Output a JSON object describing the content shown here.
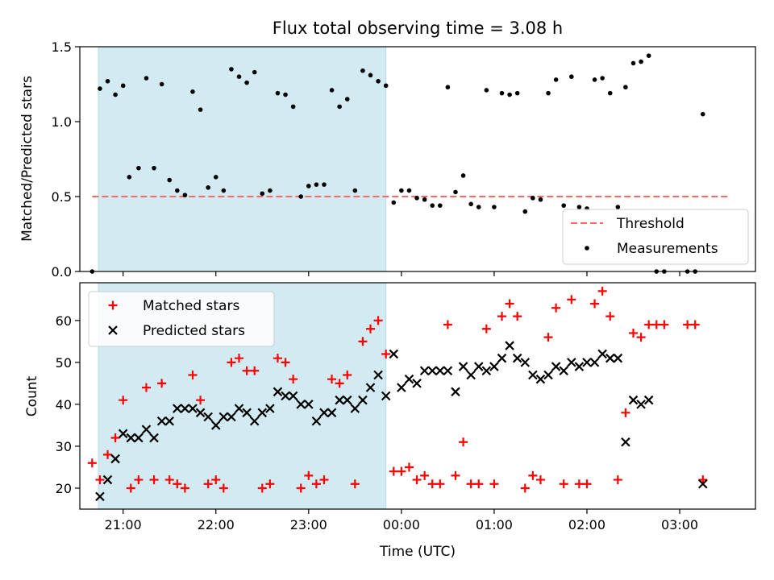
{
  "chart_data": [
    {
      "type": "scatter",
      "title": "Flux total observing time = 3.08 h",
      "xlabel": "",
      "ylabel": "Matched/Predicted stars",
      "xlim": [
        "20:32",
        "03:49"
      ],
      "ylim": [
        0,
        1.5
      ],
      "yticks": [
        "0.0",
        "0.5",
        "1.0",
        "1.5"
      ],
      "xticks": [
        "21:00",
        "22:00",
        "23:00",
        "00:00",
        "01:00",
        "02:00",
        "03:00"
      ],
      "x_tick_labels_shown": false,
      "shaded_interval": {
        "from": "20:44",
        "to": "23:50",
        "color": "#add8e6"
      },
      "threshold": {
        "name": "Threshold",
        "value": 0.5,
        "x_from": "20:40",
        "x_to": "03:33",
        "color": "#ff6666",
        "style": "dashed"
      },
      "legend": {
        "placement": "lower right",
        "entries": [
          "Threshold",
          "Measurements"
        ]
      },
      "series": [
        {
          "name": "Measurements",
          "marker": "dot",
          "color": "#000000",
          "points": [
            [
              "20:40",
              0.0
            ],
            [
              "20:45",
              1.22
            ],
            [
              "20:50",
              1.27
            ],
            [
              "20:55",
              1.18
            ],
            [
              "21:00",
              1.24
            ],
            [
              "21:04",
              0.63
            ],
            [
              "21:10",
              0.69
            ],
            [
              "21:15",
              1.29
            ],
            [
              "21:20",
              0.69
            ],
            [
              "21:25",
              1.25
            ],
            [
              "21:30",
              0.61
            ],
            [
              "21:35",
              0.54
            ],
            [
              "21:40",
              0.51
            ],
            [
              "21:45",
              1.2
            ],
            [
              "21:50",
              1.08
            ],
            [
              "21:55",
              0.56
            ],
            [
              "22:00",
              0.63
            ],
            [
              "22:05",
              0.54
            ],
            [
              "22:10",
              1.35
            ],
            [
              "22:15",
              1.3
            ],
            [
              "22:20",
              1.26
            ],
            [
              "22:25",
              1.33
            ],
            [
              "22:30",
              0.52
            ],
            [
              "22:35",
              0.54
            ],
            [
              "22:40",
              1.19
            ],
            [
              "22:45",
              1.18
            ],
            [
              "22:50",
              1.1
            ],
            [
              "22:55",
              0.5
            ],
            [
              "23:00",
              0.57
            ],
            [
              "23:05",
              0.58
            ],
            [
              "23:10",
              0.58
            ],
            [
              "23:15",
              1.21
            ],
            [
              "23:20",
              1.1
            ],
            [
              "23:25",
              1.15
            ],
            [
              "23:30",
              0.54
            ],
            [
              "23:35",
              1.34
            ],
            [
              "23:40",
              1.31
            ],
            [
              "23:45",
              1.27
            ],
            [
              "23:50",
              1.24
            ],
            [
              "23:55",
              0.46
            ],
            [
              "00:00",
              0.54
            ],
            [
              "00:05",
              0.54
            ],
            [
              "00:10",
              0.49
            ],
            [
              "00:15",
              0.48
            ],
            [
              "00:20",
              0.44
            ],
            [
              "00:25",
              0.44
            ],
            [
              "00:30",
              1.23
            ],
            [
              "00:35",
              0.53
            ],
            [
              "00:40",
              0.64
            ],
            [
              "00:45",
              0.45
            ],
            [
              "00:50",
              0.43
            ],
            [
              "00:55",
              1.21
            ],
            [
              "01:00",
              0.43
            ],
            [
              "01:05",
              1.19
            ],
            [
              "01:10",
              1.18
            ],
            [
              "01:15",
              1.19
            ],
            [
              "01:20",
              0.4
            ],
            [
              "01:25",
              0.49
            ],
            [
              "01:30",
              0.48
            ],
            [
              "01:35",
              1.19
            ],
            [
              "01:40",
              1.28
            ],
            [
              "01:45",
              0.44
            ],
            [
              "01:50",
              1.3
            ],
            [
              "01:55",
              0.43
            ],
            [
              "02:00",
              0.42
            ],
            [
              "02:05",
              1.28
            ],
            [
              "02:10",
              1.29
            ],
            [
              "02:15",
              1.19
            ],
            [
              "02:20",
              0.43
            ],
            [
              "02:25",
              1.23
            ],
            [
              "02:30",
              1.39
            ],
            [
              "02:35",
              1.4
            ],
            [
              "02:40",
              1.44
            ],
            [
              "02:45",
              0.0
            ],
            [
              "02:50",
              0.0
            ],
            [
              "03:05",
              0.0
            ],
            [
              "03:10",
              0.0
            ],
            [
              "03:15",
              1.05
            ]
          ]
        }
      ]
    },
    {
      "type": "scatter",
      "title": "",
      "xlabel": "Time (UTC)",
      "ylabel": "Count",
      "xlim": [
        "20:32",
        "03:49"
      ],
      "ylim": [
        15,
        69
      ],
      "yticks": [
        "20",
        "30",
        "40",
        "50",
        "60"
      ],
      "xticks": [
        "21:00",
        "22:00",
        "23:00",
        "00:00",
        "01:00",
        "02:00",
        "03:00"
      ],
      "shaded_interval": {
        "from": "20:44",
        "to": "23:50",
        "color": "#add8e6"
      },
      "legend": {
        "placement": "upper left",
        "entries": [
          "Matched stars",
          "Predicted stars"
        ]
      },
      "series": [
        {
          "name": "Matched stars",
          "marker": "plus",
          "color": "#ff0000",
          "points": [
            [
              "20:40",
              26
            ],
            [
              "20:45",
              22
            ],
            [
              "20:50",
              28
            ],
            [
              "20:55",
              32
            ],
            [
              "21:00",
              41
            ],
            [
              "21:05",
              20
            ],
            [
              "21:10",
              22
            ],
            [
              "21:15",
              44
            ],
            [
              "21:20",
              22
            ],
            [
              "21:25",
              45
            ],
            [
              "21:30",
              22
            ],
            [
              "21:35",
              21
            ],
            [
              "21:40",
              20
            ],
            [
              "21:45",
              47
            ],
            [
              "21:50",
              41
            ],
            [
              "21:55",
              21
            ],
            [
              "22:00",
              22
            ],
            [
              "22:05",
              20
            ],
            [
              "22:10",
              50
            ],
            [
              "22:15",
              51
            ],
            [
              "22:20",
              48
            ],
            [
              "22:25",
              48
            ],
            [
              "22:30",
              20
            ],
            [
              "22:35",
              21
            ],
            [
              "22:40",
              51
            ],
            [
              "22:45",
              50
            ],
            [
              "22:50",
              46
            ],
            [
              "22:55",
              20
            ],
            [
              "23:00",
              23
            ],
            [
              "23:05",
              21
            ],
            [
              "23:10",
              22
            ],
            [
              "23:15",
              46
            ],
            [
              "23:20",
              45
            ],
            [
              "23:25",
              47
            ],
            [
              "23:30",
              21
            ],
            [
              "23:35",
              55
            ],
            [
              "23:40",
              58
            ],
            [
              "23:45",
              60
            ],
            [
              "23:50",
              52
            ],
            [
              "23:55",
              24
            ],
            [
              "00:00",
              24
            ],
            [
              "00:05",
              25
            ],
            [
              "00:10",
              22
            ],
            [
              "00:15",
              23
            ],
            [
              "00:20",
              21
            ],
            [
              "00:25",
              21
            ],
            [
              "00:30",
              59
            ],
            [
              "00:35",
              23
            ],
            [
              "00:40",
              31
            ],
            [
              "00:45",
              21
            ],
            [
              "00:50",
              21
            ],
            [
              "00:55",
              58
            ],
            [
              "01:00",
              21
            ],
            [
              "01:05",
              61
            ],
            [
              "01:10",
              64
            ],
            [
              "01:15",
              61
            ],
            [
              "01:20",
              20
            ],
            [
              "01:25",
              23
            ],
            [
              "01:30",
              22
            ],
            [
              "01:35",
              56
            ],
            [
              "01:40",
              63
            ],
            [
              "01:45",
              21
            ],
            [
              "01:50",
              65
            ],
            [
              "01:55",
              21
            ],
            [
              "02:00",
              21
            ],
            [
              "02:05",
              64
            ],
            [
              "02:10",
              67
            ],
            [
              "02:15",
              61
            ],
            [
              "02:20",
              22
            ],
            [
              "02:25",
              38
            ],
            [
              "02:30",
              57
            ],
            [
              "02:35",
              56
            ],
            [
              "02:40",
              59
            ],
            [
              "02:45",
              59
            ],
            [
              "02:50",
              59
            ],
            [
              "03:05",
              59
            ],
            [
              "03:10",
              59
            ],
            [
              "03:15",
              22
            ]
          ]
        },
        {
          "name": "Predicted stars",
          "marker": "x",
          "color": "#000000",
          "points": [
            [
              "20:45",
              18
            ],
            [
              "20:50",
              22
            ],
            [
              "20:55",
              27
            ],
            [
              "21:00",
              33
            ],
            [
              "21:05",
              32
            ],
            [
              "21:10",
              32
            ],
            [
              "21:15",
              34
            ],
            [
              "21:20",
              32
            ],
            [
              "21:25",
              36
            ],
            [
              "21:30",
              36
            ],
            [
              "21:35",
              39
            ],
            [
              "21:40",
              39
            ],
            [
              "21:45",
              39
            ],
            [
              "21:50",
              38
            ],
            [
              "21:55",
              37
            ],
            [
              "22:00",
              35
            ],
            [
              "22:05",
              37
            ],
            [
              "22:10",
              37
            ],
            [
              "22:15",
              39
            ],
            [
              "22:20",
              38
            ],
            [
              "22:25",
              36
            ],
            [
              "22:30",
              38
            ],
            [
              "22:35",
              39
            ],
            [
              "22:40",
              43
            ],
            [
              "22:45",
              42
            ],
            [
              "22:50",
              42
            ],
            [
              "22:55",
              40
            ],
            [
              "23:00",
              40
            ],
            [
              "23:05",
              36
            ],
            [
              "23:10",
              38
            ],
            [
              "23:15",
              38
            ],
            [
              "23:20",
              41
            ],
            [
              "23:25",
              41
            ],
            [
              "23:30",
              39
            ],
            [
              "23:35",
              41
            ],
            [
              "23:40",
              44
            ],
            [
              "23:45",
              47
            ],
            [
              "23:50",
              42
            ],
            [
              "23:55",
              52
            ],
            [
              "00:00",
              44
            ],
            [
              "00:05",
              46
            ],
            [
              "00:10",
              45
            ],
            [
              "00:15",
              48
            ],
            [
              "00:20",
              48
            ],
            [
              "00:25",
              48
            ],
            [
              "00:30",
              48
            ],
            [
              "00:35",
              43
            ],
            [
              "00:40",
              49
            ],
            [
              "00:45",
              47
            ],
            [
              "00:50",
              49
            ],
            [
              "00:55",
              48
            ],
            [
              "01:00",
              49
            ],
            [
              "01:05",
              51
            ],
            [
              "01:10",
              54
            ],
            [
              "01:15",
              51
            ],
            [
              "01:20",
              50
            ],
            [
              "01:25",
              47
            ],
            [
              "01:30",
              46
            ],
            [
              "01:35",
              47
            ],
            [
              "01:40",
              49
            ],
            [
              "01:45",
              48
            ],
            [
              "01:50",
              50
            ],
            [
              "01:55",
              49
            ],
            [
              "02:00",
              50
            ],
            [
              "02:05",
              50
            ],
            [
              "02:10",
              52
            ],
            [
              "02:15",
              51
            ],
            [
              "02:20",
              51
            ],
            [
              "02:25",
              31
            ],
            [
              "02:30",
              41
            ],
            [
              "02:35",
              40
            ],
            [
              "02:40",
              41
            ],
            [
              "03:15",
              21
            ]
          ]
        }
      ]
    }
  ]
}
